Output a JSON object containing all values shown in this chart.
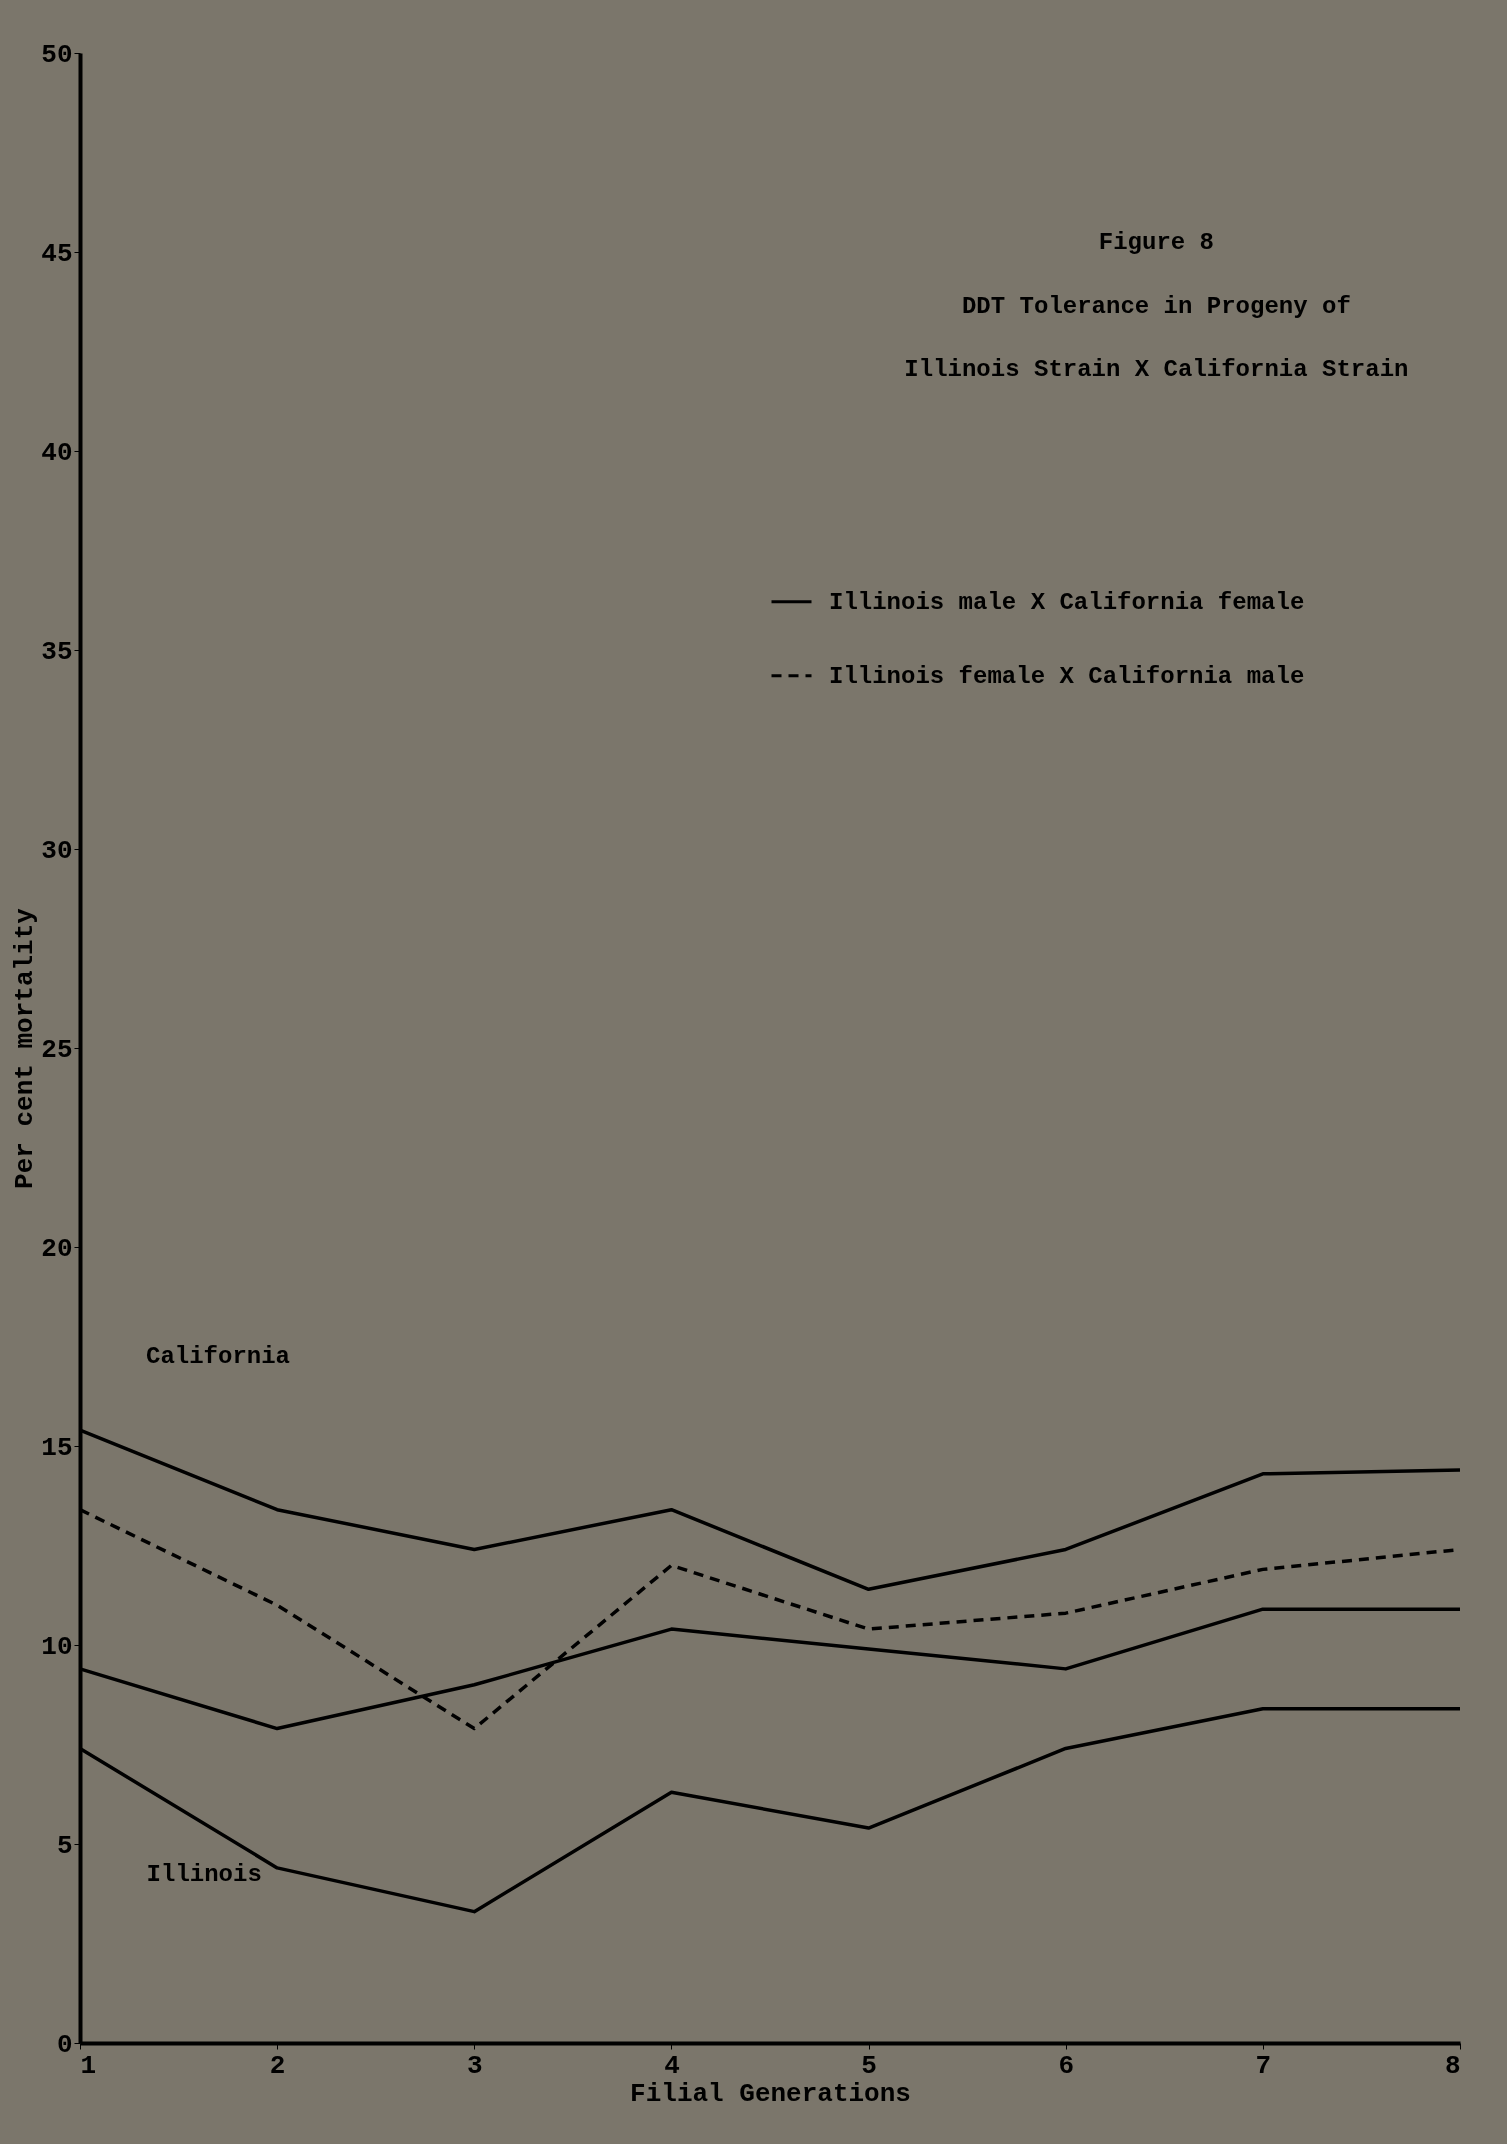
{
  "chart_data": {
    "type": "line",
    "title": "Figure 8",
    "subtitle": "DDT Tolerance in Progeny of Illinois Strain X California Strain",
    "xlabel": "Filial Generations",
    "ylabel": "Per cent mortality",
    "x": [
      1,
      2,
      3,
      4,
      5,
      6,
      7,
      8
    ],
    "series": [
      {
        "color": "#000000",
        "line_style": "solid",
        "values": [
          15.4,
          13.4,
          12.4,
          13.4,
          11.4,
          12.4,
          14.3,
          14.4
        ]
      },
      {
        "name": "Illinois male X California female",
        "color": "#000000",
        "line_style": "solid",
        "values": [
          9.4,
          7.9,
          9.0,
          10.4,
          9.9,
          9.4,
          10.9,
          10.9
        ]
      },
      {
        "name": "Illinois female X California male",
        "color": "#000000",
        "line_style": "dashed",
        "values": [
          13.4,
          11.0,
          7.9,
          12.0,
          10.4,
          10.8,
          11.9,
          12.4
        ]
      },
      {
        "color": "#000000",
        "line_style": "solid",
        "values": [
          7.4,
          4.4,
          3.3,
          6.3,
          5.4,
          7.4,
          8.4,
          8.4
        ]
      }
    ],
    "annotations": [
      "California",
      "Illinois"
    ],
    "xlim": [
      1,
      8
    ],
    "xticks": [
      1,
      2,
      3,
      4,
      5,
      6,
      7,
      8
    ],
    "ylim": [
      0,
      50
    ],
    "yticks": [
      0,
      5,
      10,
      15,
      20,
      25,
      30,
      35,
      40,
      45,
      50
    ],
    "grid": false,
    "legend": "top right",
    "marker": "none"
  }
}
